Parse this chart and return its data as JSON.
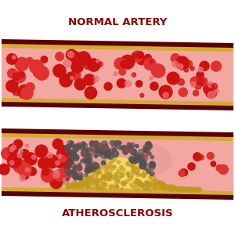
{
  "bg_color": "#ffffff",
  "title_normal": "NORMAL ARTERY",
  "title_athero": "ATHEROSCLEROSIS",
  "title_color": "#8b0000",
  "title_fontsize": 9.5,
  "wall_outer_color": "#5a0000",
  "wall_gold_color": "#d4aa30",
  "lumen_color": "#f2a8a0",
  "rbc_dark": "#cc1111",
  "rbc_medium": "#e03030",
  "rbc_light": "#e87070",
  "plaque_yellow_light": "#f5d86a",
  "plaque_yellow_dark": "#d4a820",
  "plaque_dot": "#c09820",
  "foam_dark": "#505050",
  "foam_mid": "#808040",
  "transition_color": "#e09090"
}
